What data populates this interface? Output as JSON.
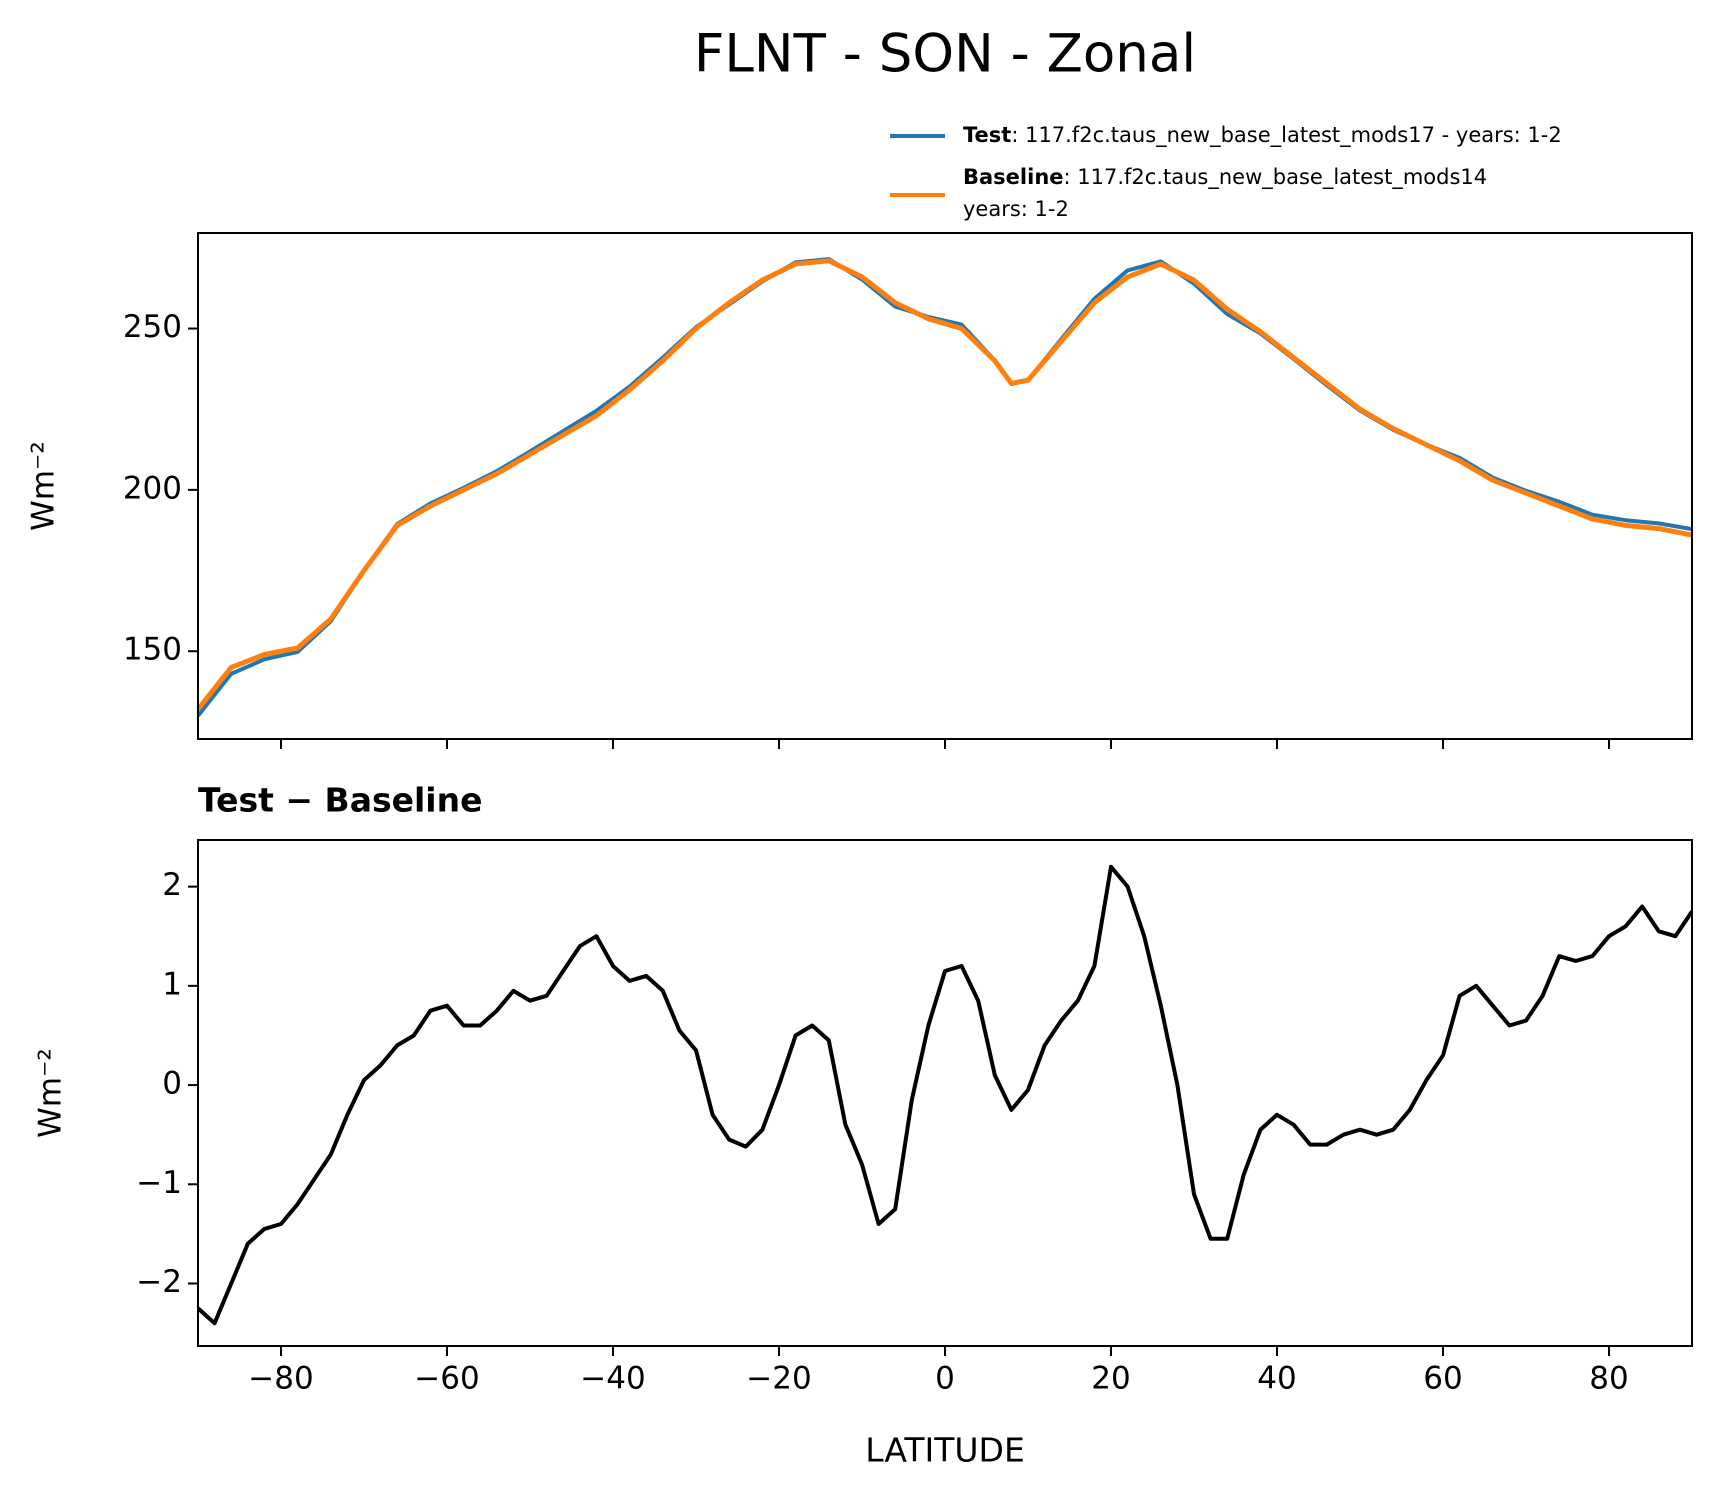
{
  "title": "FLNT - SON - Zonal",
  "chart_data": [
    {
      "type": "line",
      "ylabel": "Wm⁻²",
      "x": [
        -90,
        -86,
        -82,
        -78,
        -74,
        -70,
        -66,
        -62,
        -58,
        -54,
        -50,
        -46,
        -42,
        -38,
        -34,
        -30,
        -26,
        -22,
        -18,
        -14,
        -10,
        -6,
        -2,
        2,
        6,
        8,
        10,
        14,
        18,
        22,
        26,
        30,
        34,
        38,
        42,
        46,
        50,
        54,
        58,
        62,
        66,
        70,
        74,
        78,
        82,
        86,
        90
      ],
      "series": [
        {
          "name": "Test",
          "description": [
            ": 117.f2c.taus_new_base_latest_mods17 - years: 1-2"
          ],
          "color": "#1f77b4",
          "values": [
            130,
            143,
            147.5,
            149.8,
            159.3,
            175,
            189.4,
            195.8,
            200.6,
            205.8,
            211.9,
            218.2,
            224.5,
            232,
            241,
            250.4,
            257.5,
            264.6,
            270.5,
            271.5,
            265.2,
            256.8,
            253.6,
            251.2,
            240.1,
            232.8,
            234,
            246.7,
            259.2,
            268,
            270.8,
            263.9,
            254.5,
            248.5,
            240.6,
            232.4,
            224.6,
            218.6,
            214,
            209.9,
            203.8,
            199.7,
            196.3,
            192.3,
            190.6,
            189.6,
            187.8
          ]
        },
        {
          "name": "Baseline",
          "description": [
            ": 117.f2c.taus_new_base_latest_mods14",
            "years: 1-2"
          ],
          "color": "#ff7f0e",
          "values": [
            132,
            145,
            149,
            151,
            160,
            175,
            189,
            195,
            200,
            205,
            211,
            217,
            223,
            231,
            240,
            250,
            258,
            265,
            270,
            271,
            266,
            258,
            253,
            250,
            240,
            233,
            234,
            246,
            258,
            266,
            270,
            265,
            256,
            249,
            241,
            233,
            225,
            219,
            214,
            209,
            203,
            199,
            195,
            191,
            189,
            188,
            186
          ]
        }
      ],
      "xlim": [
        -90,
        90
      ],
      "xticks": [
        -80,
        -60,
        -40,
        -20,
        0,
        20,
        40,
        60,
        80
      ],
      "ylim": [
        122.8,
        279.6
      ],
      "yticks": [
        150,
        200,
        250
      ]
    },
    {
      "type": "line",
      "title": "Test − Baseline",
      "ylabel": "Wm⁻²",
      "xlabel": "LATITUDE",
      "x": [
        -90,
        -88,
        -86,
        -84,
        -82,
        -80,
        -78,
        -76,
        -74,
        -72,
        -70,
        -68,
        -66,
        -64,
        -62,
        -60,
        -58,
        -56,
        -54,
        -52,
        -50,
        -48,
        -46,
        -44,
        -42,
        -40,
        -38,
        -36,
        -34,
        -32,
        -30,
        -28,
        -26,
        -24,
        -22,
        -20,
        -18,
        -16,
        -14,
        -12,
        -10,
        -8,
        -6,
        -4,
        -2,
        0,
        2,
        4,
        6,
        8,
        10,
        12,
        14,
        16,
        18,
        20,
        22,
        24,
        26,
        28,
        30,
        32,
        34,
        36,
        38,
        40,
        42,
        44,
        46,
        48,
        50,
        52,
        54,
        56,
        58,
        60,
        62,
        64,
        66,
        68,
        70,
        72,
        74,
        76,
        78,
        80,
        82,
        84,
        86,
        88,
        90
      ],
      "series": [
        {
          "name": "Test − Baseline",
          "color": "#000000",
          "values": [
            -2.25,
            -2.4,
            -2.0,
            -1.6,
            -1.45,
            -1.4,
            -1.2,
            -0.95,
            -0.7,
            -0.3,
            0.05,
            0.2,
            0.4,
            0.5,
            0.75,
            0.8,
            0.6,
            0.6,
            0.75,
            0.95,
            0.85,
            0.9,
            1.15,
            1.4,
            1.5,
            1.2,
            1.05,
            1.1,
            0.95,
            0.55,
            0.35,
            -0.3,
            -0.55,
            -0.62,
            -0.45,
            0.0,
            0.5,
            0.6,
            0.45,
            -0.4,
            -0.8,
            -1.4,
            -1.25,
            -0.15,
            0.6,
            1.15,
            1.2,
            0.85,
            0.1,
            -0.25,
            -0.05,
            0.4,
            0.65,
            0.85,
            1.2,
            2.2,
            2.0,
            1.5,
            0.8,
            0.0,
            -1.1,
            -1.55,
            -1.55,
            -0.9,
            -0.45,
            -0.3,
            -0.4,
            -0.6,
            -0.6,
            -0.5,
            -0.45,
            -0.5,
            -0.45,
            -0.25,
            0.05,
            0.3,
            0.9,
            1.0,
            0.8,
            0.6,
            0.65,
            0.9,
            1.3,
            1.25,
            1.3,
            1.5,
            1.6,
            1.8,
            1.55,
            1.5,
            1.75
          ]
        }
      ],
      "xlim": [
        -90,
        90
      ],
      "xticks": [
        {
          "value": -80,
          "label": "−80"
        },
        {
          "value": -60,
          "label": "−60"
        },
        {
          "value": -40,
          "label": "−40"
        },
        {
          "value": -20,
          "label": "−20"
        },
        0,
        20,
        40,
        60,
        80
      ],
      "ylim": [
        -2.63,
        2.47
      ],
      "yticks": [
        {
          "value": -2,
          "label": "−2"
        },
        {
          "value": -1,
          "label": "−1"
        },
        0,
        1,
        2
      ]
    }
  ]
}
